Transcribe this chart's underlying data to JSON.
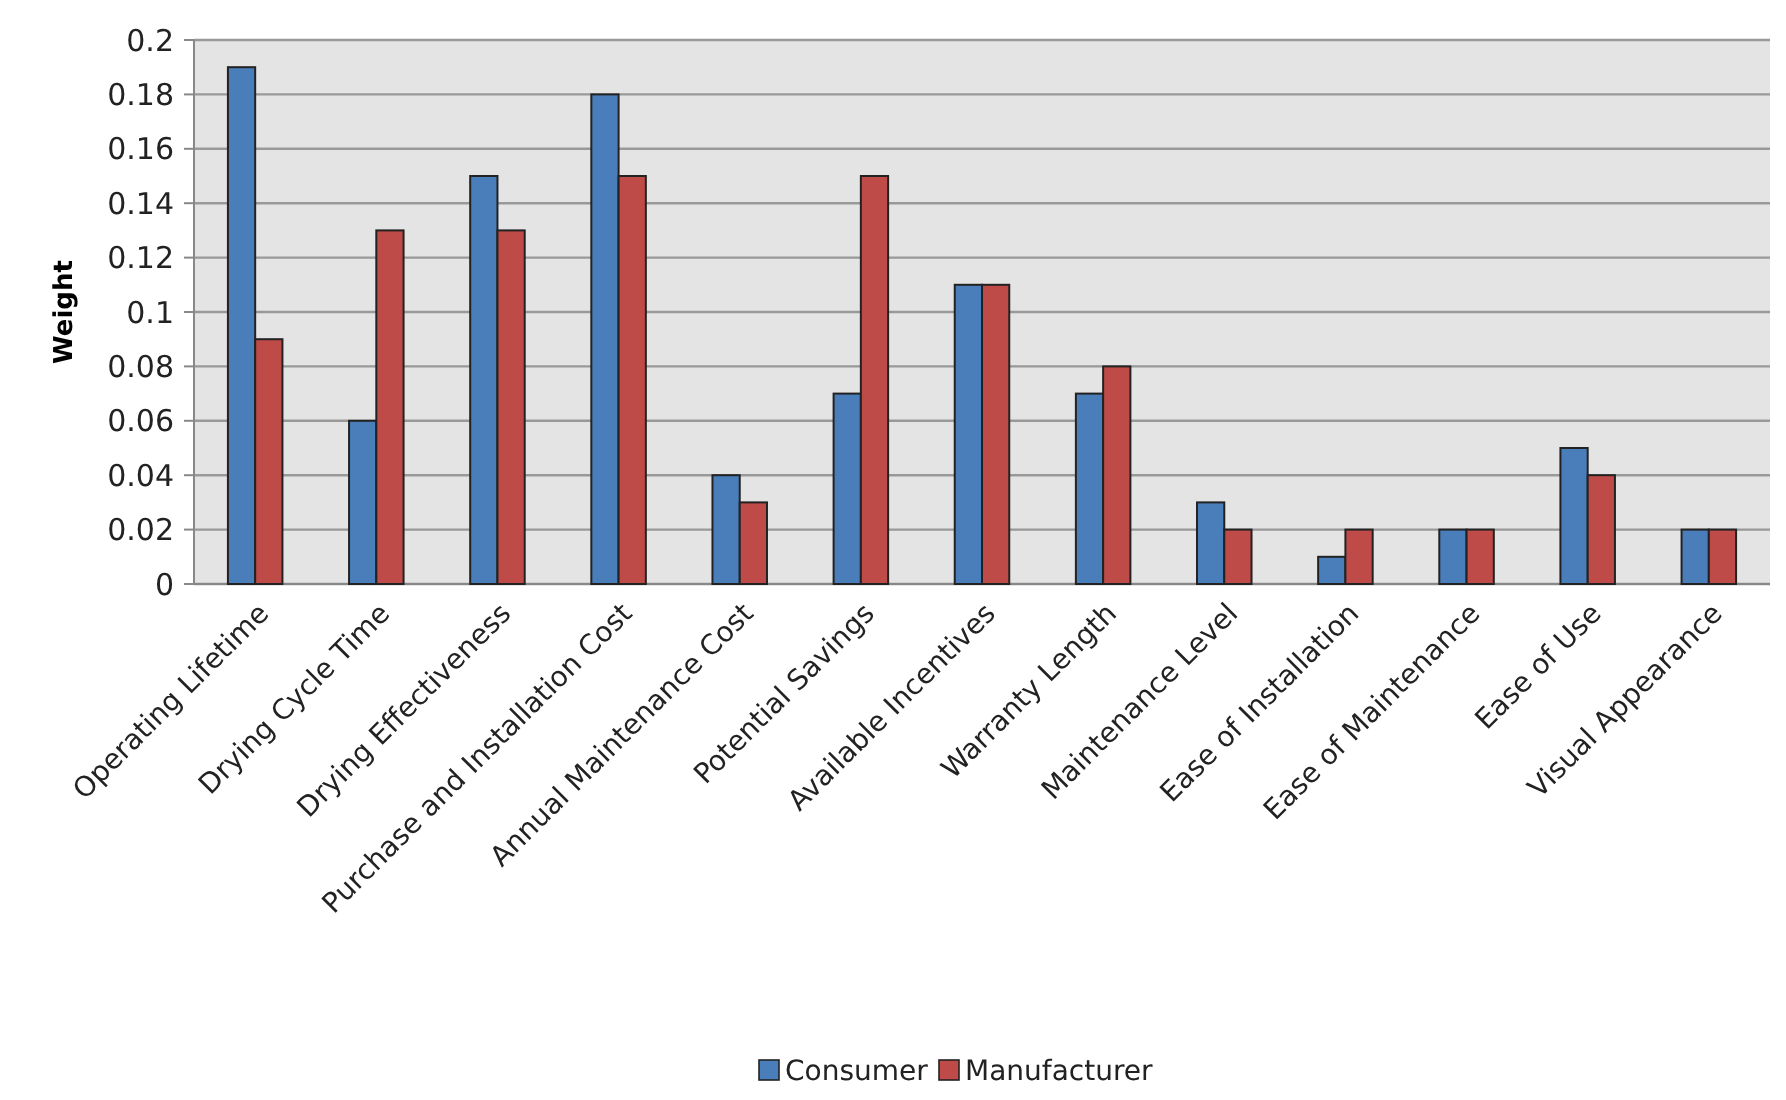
{
  "chart_data": {
    "type": "bar",
    "ylabel": "Weight",
    "categories": [
      "Operating Lifetime",
      "Drying Cycle Time",
      "Drying Effectiveness",
      "Purchase and Installation Cost",
      "Annual Maintenance Cost",
      "Potential Savings",
      "Available Incentives",
      "Warranty Length",
      "Maintenance Level",
      "Ease of Installation",
      "Ease of Maintenance",
      "Ease of Use",
      "Visual Appearance"
    ],
    "series": [
      {
        "name": "Consumer",
        "color": "#4a7ebb",
        "values": [
          0.19,
          0.06,
          0.15,
          0.18,
          0.04,
          0.07,
          0.11,
          0.07,
          0.03,
          0.01,
          0.02,
          0.05,
          0.02
        ]
      },
      {
        "name": "Manufacturer",
        "color": "#be4b48",
        "values": [
          0.09,
          0.13,
          0.13,
          0.15,
          0.03,
          0.15,
          0.11,
          0.08,
          0.02,
          0.02,
          0.02,
          0.04,
          0.02
        ]
      }
    ],
    "ylim": [
      0,
      0.2
    ],
    "yticks": [
      0,
      0.02,
      0.04,
      0.06,
      0.08,
      0.1,
      0.12,
      0.14,
      0.16,
      0.18,
      0.2
    ],
    "grid": "y",
    "legend": "bottom"
  }
}
